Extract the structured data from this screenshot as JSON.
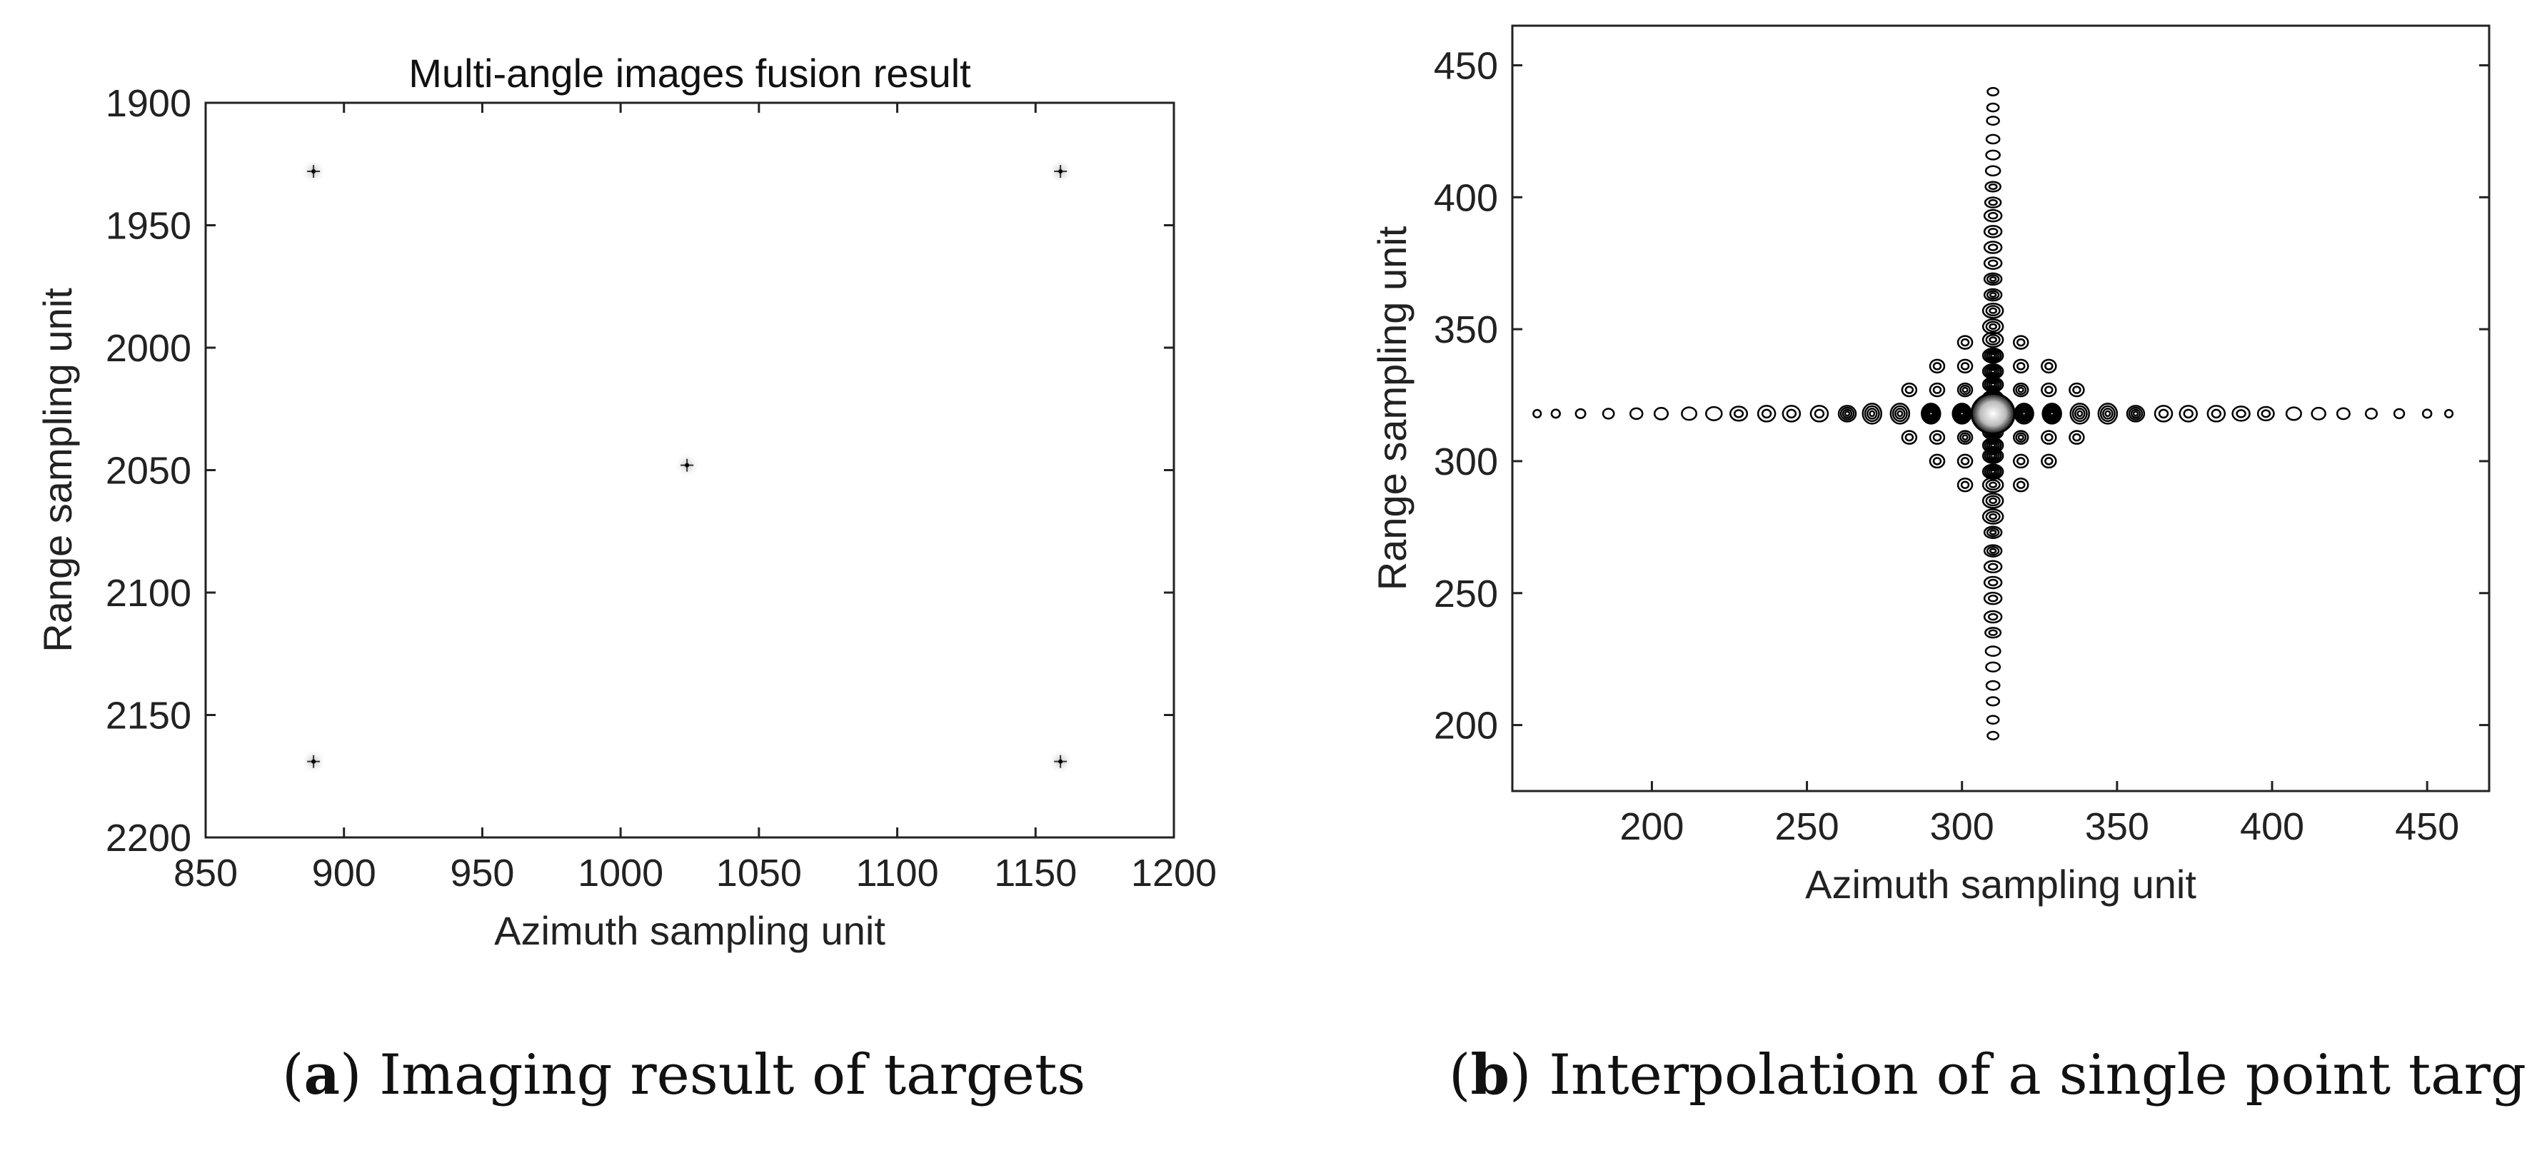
{
  "chart_data": [
    {
      "type": "scatter",
      "title": "Multi-angle images fusion result",
      "xlabel": "Azimuth sampling unit",
      "ylabel": "Range sampling unit",
      "xlim": [
        850,
        1200
      ],
      "ylim": [
        2200,
        1900
      ],
      "y_reversed": true,
      "xticks": [
        850,
        900,
        950,
        1000,
        1050,
        1100,
        1150,
        1200
      ],
      "yticks": [
        1900,
        1950,
        2000,
        2050,
        2100,
        2150,
        2200
      ],
      "grid": false,
      "points": [
        {
          "x": 889,
          "y": 1928
        },
        {
          "x": 1159,
          "y": 1928
        },
        {
          "x": 1024,
          "y": 2048
        },
        {
          "x": 889,
          "y": 2169
        },
        {
          "x": 1159,
          "y": 2169
        }
      ],
      "caption_letter": "a",
      "caption_text": ") Imaging result of targets",
      "caption_open": "("
    },
    {
      "type": "contour",
      "title": "",
      "xlabel": "Azimuth sampling unit",
      "ylabel": "Range sampling unit",
      "xlim": [
        155,
        470
      ],
      "ylim": [
        175,
        465
      ],
      "xticks": [
        200,
        250,
        300,
        350,
        400,
        450
      ],
      "yticks": [
        200,
        250,
        300,
        350,
        400,
        450
      ],
      "grid": false,
      "center": {
        "x": 310,
        "y": 318
      },
      "horizontal_lobe_x": [
        163,
        169,
        177,
        186,
        195,
        203,
        212,
        220,
        228,
        237,
        245,
        254,
        263,
        271,
        280,
        290,
        300,
        320,
        329,
        338,
        347,
        356,
        365,
        373,
        382,
        390,
        398,
        407,
        415,
        423,
        432,
        441,
        450,
        457
      ],
      "vertical_lobe_y": [
        196,
        202,
        209,
        215,
        222,
        228,
        235,
        241,
        248,
        254,
        260,
        266,
        273,
        279,
        285,
        291,
        296,
        302,
        306,
        311,
        324,
        329,
        334,
        340,
        346,
        351,
        357,
        363,
        369,
        375,
        381,
        387,
        393,
        398,
        404,
        410,
        416,
        422,
        429,
        434,
        440
      ],
      "caption_letter": "b",
      "caption_text": ") Interpolation of a single point target",
      "caption_open": "("
    }
  ]
}
